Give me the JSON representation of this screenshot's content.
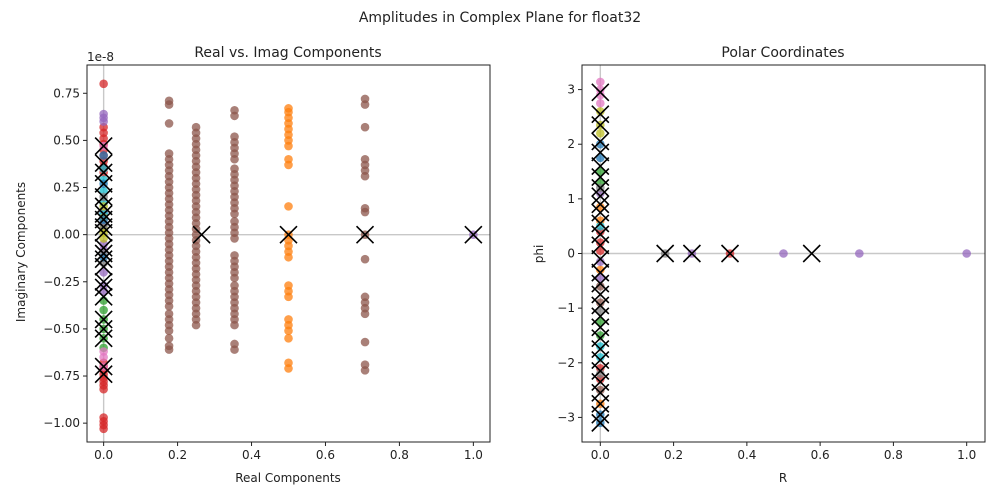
{
  "figure": {
    "suptitle": "Amplitudes in Complex Plane for float32"
  },
  "colors": {
    "blue": "#1f77b4",
    "orange": "#ff7f0e",
    "green": "#2ca02c",
    "red": "#d62728",
    "purple": "#9467bd",
    "brown": "#8c564b",
    "pink": "#e377c2",
    "gray": "#7f7f7f",
    "olive": "#bcbd22",
    "cyan": "#17becf",
    "marker_x": "#000000",
    "zero_line": "#c8c8c8"
  },
  "chart_data": [
    {
      "type": "scatter",
      "title": "Real vs. Imag Components",
      "xlabel": "Real Components",
      "ylabel": "Imaginary Components",
      "y_offset_label": "1e-8",
      "xlim": [
        -0.045,
        1.045
      ],
      "ylim": [
        -1.1,
        0.9
      ],
      "xticks": [
        0.0,
        0.2,
        0.4,
        0.6,
        0.8,
        1.0
      ],
      "xtick_labels": [
        "0.0",
        "0.2",
        "0.4",
        "0.6",
        "0.8",
        "1.0"
      ],
      "yticks": [
        -1.0,
        -0.75,
        -0.5,
        -0.25,
        0.0,
        0.25,
        0.5,
        0.75
      ],
      "ytick_labels": [
        "−1.00",
        "−0.75",
        "−0.50",
        "−0.25",
        "0.00",
        "0.25",
        "0.50",
        "0.75"
      ],
      "grid": false,
      "reference_lines": {
        "horizontal": 0,
        "vertical": 0
      },
      "point_groups": [
        {
          "x": 0.0,
          "color": "red",
          "y": [
            0.8,
            0.57,
            0.54,
            0.51,
            0.48,
            0.45,
            0.42,
            0.39,
            0.36,
            0.33,
            -0.68,
            -0.7,
            -0.72,
            -0.74,
            -0.76,
            -0.78,
            -0.8,
            -0.82,
            -0.97,
            -0.99,
            -1.01,
            -1.03
          ]
        },
        {
          "x": 0.0,
          "color": "purple",
          "y": [
            0.64,
            0.62,
            0.6,
            0.12,
            0.06,
            -0.05,
            -0.08,
            -0.2,
            -0.27,
            -0.3
          ]
        },
        {
          "x": 0.0,
          "color": "cyan",
          "y": [
            0.35,
            0.29,
            0.23,
            0.17,
            0.11
          ]
        },
        {
          "x": 0.0,
          "color": "olive",
          "y": [
            0.15,
            0.09,
            0.03,
            0.01,
            -0.02
          ]
        },
        {
          "x": 0.0,
          "color": "green",
          "y": [
            -0.35,
            -0.4,
            -0.45,
            -0.5,
            -0.55,
            -0.6
          ]
        },
        {
          "x": 0.0,
          "color": "pink",
          "y": [
            -0.62,
            -0.65,
            -0.7,
            0.47
          ]
        },
        {
          "x": 0.0,
          "color": "gray",
          "y": [
            0.2,
            0.05,
            -0.1,
            -0.15
          ]
        },
        {
          "x": 0.0,
          "color": "blue",
          "y": [
            0.42,
            0.27,
            0.08,
            -0.12
          ]
        },
        {
          "x": 0.177,
          "color": "brown",
          "y": [
            0.71,
            0.69,
            0.59,
            0.43,
            0.4,
            0.37,
            0.34,
            0.31,
            0.28,
            0.25,
            0.22,
            0.19,
            0.16,
            0.13,
            0.1,
            0.07,
            0.04,
            0.01,
            -0.02,
            -0.05,
            -0.08,
            -0.11,
            -0.14,
            -0.17,
            -0.2,
            -0.23,
            -0.26,
            -0.29,
            -0.32,
            -0.35,
            -0.38,
            -0.42,
            -0.45,
            -0.48,
            -0.51,
            -0.55,
            -0.59,
            -0.61
          ]
        },
        {
          "x": 0.25,
          "color": "brown",
          "y": [
            0.57,
            0.54,
            0.51,
            0.48,
            0.45,
            0.42,
            0.39,
            0.36,
            0.33,
            0.3,
            0.27,
            0.24,
            0.21,
            0.18,
            0.15,
            0.12,
            0.09,
            0.06,
            0.03,
            0.0,
            -0.03,
            -0.06,
            -0.09,
            -0.12,
            -0.15,
            -0.18,
            -0.21,
            -0.24,
            -0.27,
            -0.3,
            -0.33,
            -0.36,
            -0.39,
            -0.42,
            -0.45,
            -0.48
          ]
        },
        {
          "x": 0.354,
          "color": "brown",
          "y": [
            0.66,
            0.63,
            0.52,
            0.49,
            0.46,
            0.43,
            0.4,
            0.35,
            0.32,
            0.29,
            0.26,
            0.23,
            0.2,
            0.17,
            0.14,
            0.11,
            0.07,
            0.04,
            0.01,
            -0.02,
            -0.11,
            -0.14,
            -0.17,
            -0.2,
            -0.23,
            -0.27,
            -0.3,
            -0.33,
            -0.36,
            -0.39,
            -0.42,
            -0.45,
            -0.48,
            -0.58,
            -0.61
          ]
        },
        {
          "x": 0.5,
          "color": "orange",
          "y": [
            0.67,
            0.65,
            0.62,
            0.59,
            0.56,
            0.53,
            0.5,
            0.47,
            0.4,
            0.37,
            0.15,
            0.0,
            -0.03,
            -0.06,
            -0.09,
            -0.12,
            -0.27,
            -0.3,
            -0.33,
            -0.45,
            -0.48,
            -0.51,
            -0.55,
            -0.68,
            -0.71
          ]
        },
        {
          "x": 0.707,
          "color": "brown",
          "y": [
            0.72,
            0.69,
            0.57,
            0.4,
            0.37,
            0.34,
            0.31,
            0.14,
            0.12,
            0.0,
            -0.13,
            -0.33,
            -0.36,
            -0.39,
            -0.42,
            -0.57,
            -0.69,
            -0.72
          ]
        },
        {
          "x": 1.0,
          "color": "purple",
          "y": [
            0.0
          ]
        }
      ],
      "x_markers": [
        {
          "x": 0.0,
          "y": [
            0.47,
            0.38,
            0.33,
            0.27,
            0.2,
            0.15,
            0.11,
            0.08,
            0.04,
            0.01,
            -0.07,
            -0.1,
            -0.13,
            -0.17,
            -0.25,
            -0.28,
            -0.33,
            -0.45,
            -0.5,
            -0.55,
            -0.7,
            -0.74
          ]
        },
        {
          "x": 0.265,
          "y": [
            0.0
          ]
        },
        {
          "x": 0.5,
          "y": [
            0.0
          ]
        },
        {
          "x": 0.707,
          "y": [
            0.0
          ]
        },
        {
          "x": 1.0,
          "y": [
            0.0
          ]
        }
      ]
    },
    {
      "type": "scatter",
      "title": "Polar Coordinates",
      "xlabel": "R",
      "ylabel": "phi",
      "xlim": [
        -0.05,
        1.05
      ],
      "ylim": [
        -3.45,
        3.45
      ],
      "xticks": [
        0.0,
        0.2,
        0.4,
        0.6,
        0.8,
        1.0
      ],
      "xtick_labels": [
        "0.0",
        "0.2",
        "0.4",
        "0.6",
        "0.8",
        "1.0"
      ],
      "yticks": [
        -3,
        -2,
        -1,
        0,
        1,
        2,
        3
      ],
      "ytick_labels": [
        "−3",
        "−2",
        "−1",
        "0",
        "1",
        "2",
        "3"
      ],
      "grid": false,
      "reference_lines": {
        "horizontal": 0,
        "vertical": 0
      },
      "point_groups": [
        {
          "x": 0.0,
          "color": "pink",
          "y": [
            3.14,
            3.0,
            2.9,
            2.75
          ]
        },
        {
          "x": 0.0,
          "color": "olive",
          "y": [
            2.6,
            2.35,
            2.2
          ]
        },
        {
          "x": 0.0,
          "color": "blue",
          "y": [
            2.0,
            1.75,
            -2.95,
            -3.1
          ]
        },
        {
          "x": 0.0,
          "color": "green",
          "y": [
            1.5,
            1.3,
            -1.25,
            -1.5
          ]
        },
        {
          "x": 0.0,
          "color": "orange",
          "y": [
            0.85,
            0.6,
            -0.3,
            -2.75
          ]
        },
        {
          "x": 0.0,
          "color": "red",
          "y": [
            0.4,
            0.2,
            0.05,
            -2.1,
            -2.3
          ]
        },
        {
          "x": 0.0,
          "color": "cyan",
          "y": [
            0.5,
            -1.9,
            -1.7
          ]
        },
        {
          "x": 0.0,
          "color": "brown",
          "y": [
            -0.6,
            -0.9,
            -2.5
          ]
        },
        {
          "x": 0.0,
          "color": "purple",
          "y": [
            -0.15,
            -0.45,
            1.1
          ]
        },
        {
          "x": 0.0,
          "color": "gray",
          "y": [
            1.2,
            -1.05,
            -2.2
          ]
        },
        {
          "x": 0.177,
          "color": "gray",
          "y": [
            0.0
          ]
        },
        {
          "x": 0.25,
          "color": "purple",
          "y": [
            0.0
          ]
        },
        {
          "x": 0.354,
          "color": "red",
          "y": [
            0.0
          ]
        },
        {
          "x": 0.5,
          "color": "purple",
          "y": [
            0.0
          ]
        },
        {
          "x": 0.707,
          "color": "purple",
          "y": [
            0.0
          ]
        },
        {
          "x": 1.0,
          "color": "purple",
          "y": [
            0.0
          ]
        }
      ],
      "x_markers": [
        {
          "x": 0.0,
          "y": [
            2.95,
            2.55,
            2.35,
            2.05,
            1.85,
            1.6,
            1.4,
            1.2,
            1.05,
            0.9,
            0.75,
            0.55,
            0.35,
            0.15,
            -0.1,
            -0.35,
            -0.55,
            -0.75,
            -0.95,
            -1.15,
            -1.35,
            -1.55,
            -1.75,
            -1.95,
            -2.15,
            -2.35,
            -2.55,
            -2.75,
            -2.95,
            -3.1
          ]
        },
        {
          "x": 0.177,
          "y": [
            0.0
          ]
        },
        {
          "x": 0.25,
          "y": [
            0.0
          ]
        },
        {
          "x": 0.354,
          "y": [
            0.0
          ]
        },
        {
          "x": 0.577,
          "y": [
            0.0
          ]
        }
      ]
    }
  ]
}
